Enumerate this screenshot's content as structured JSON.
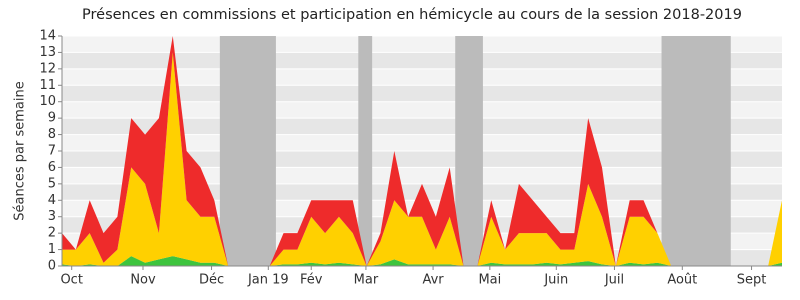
{
  "chart_data": {
    "type": "stacked_area",
    "title": "Présences en commissions et participation en hémicycle au cours de la session 2018-2019",
    "y_label": "Séances par semaine",
    "x": [
      0,
      1,
      2,
      3,
      4,
      5,
      6,
      7,
      8,
      9,
      10,
      11,
      12,
      13,
      14,
      15,
      16,
      17,
      18,
      19,
      20,
      21,
      22,
      23,
      24,
      25,
      26,
      27,
      28,
      29,
      30,
      31,
      32,
      33,
      34,
      35,
      36,
      37,
      38,
      39,
      40,
      41,
      42,
      43,
      44,
      45,
      46,
      47,
      48,
      49,
      50,
      51,
      52
    ],
    "series": [
      {
        "color": "#3ec43e",
        "values": [
          0.1,
          0,
          0.1,
          0,
          0,
          0.6,
          0.2,
          0.4,
          0.6,
          0.4,
          0.2,
          0.2,
          0,
          0,
          0,
          0,
          0.1,
          0.1,
          0.2,
          0.1,
          0.2,
          0.1,
          0,
          0.1,
          0.4,
          0.1,
          0.1,
          0.1,
          0.1,
          0,
          0,
          0.2,
          0.1,
          0.1,
          0.1,
          0.2,
          0.1,
          0.2,
          0.3,
          0.1,
          0,
          0.2,
          0.1,
          0.2,
          0,
          0,
          0,
          0,
          0,
          0,
          0,
          0,
          0.2
        ]
      },
      {
        "color": "#ffd000",
        "values": [
          0.9,
          1,
          1.9,
          0.2,
          1,
          5.4,
          4.8,
          1.6,
          12.4,
          3.6,
          2.8,
          2.8,
          0,
          0,
          0,
          0,
          0.9,
          0.9,
          2.8,
          1.9,
          2.8,
          1.9,
          0,
          1.4,
          3.6,
          2.9,
          2.9,
          0.9,
          2.9,
          0,
          0,
          2.8,
          0.9,
          1.9,
          1.9,
          1.8,
          0.9,
          0.8,
          4.7,
          2.9,
          0,
          2.8,
          2.9,
          1.8,
          0,
          0,
          0,
          0,
          0,
          0,
          0,
          0,
          3.8
        ]
      },
      {
        "color": "#ee2b2b",
        "values": [
          1,
          0,
          2,
          1.8,
          2,
          3,
          3,
          7,
          1,
          3,
          3,
          1,
          0,
          0,
          0,
          0,
          1,
          1,
          1,
          2,
          1,
          2,
          0,
          0.5,
          3,
          0,
          2,
          2,
          3,
          0,
          0,
          1,
          0,
          3,
          2,
          1,
          1,
          1,
          4,
          3,
          0,
          1,
          1,
          0,
          0,
          0,
          0,
          0,
          0,
          0,
          0,
          0,
          0
        ]
      }
    ],
    "shaded_periods": [
      [
        11.4,
        15.45
      ],
      [
        21.4,
        22.4
      ],
      [
        28.4,
        30.4
      ],
      [
        43.3,
        48.3
      ]
    ],
    "shade_color": "#bbbbbb",
    "xlim": [
      0,
      52
    ],
    "xticks": [
      {
        "value": 0.7,
        "label": "Oct"
      },
      {
        "value": 5.85,
        "label": "Nov"
      },
      {
        "value": 10.8,
        "label": "Déc"
      },
      {
        "value": 14.9,
        "label": "Jan 19"
      },
      {
        "value": 18,
        "label": "Fév"
      },
      {
        "value": 21.95,
        "label": "Mar"
      },
      {
        "value": 26.8,
        "label": "Avr"
      },
      {
        "value": 30.9,
        "label": "Mai"
      },
      {
        "value": 35.7,
        "label": "Juin"
      },
      {
        "value": 39.9,
        "label": "Juil"
      },
      {
        "value": 44.8,
        "label": "Août"
      },
      {
        "value": 49.8,
        "label": "Sept"
      }
    ],
    "ylim": [
      0,
      14
    ],
    "yticks": [
      0,
      1,
      2,
      3,
      4,
      5,
      6,
      7,
      8,
      9,
      10,
      11,
      12,
      13,
      14
    ],
    "grid": true
  }
}
